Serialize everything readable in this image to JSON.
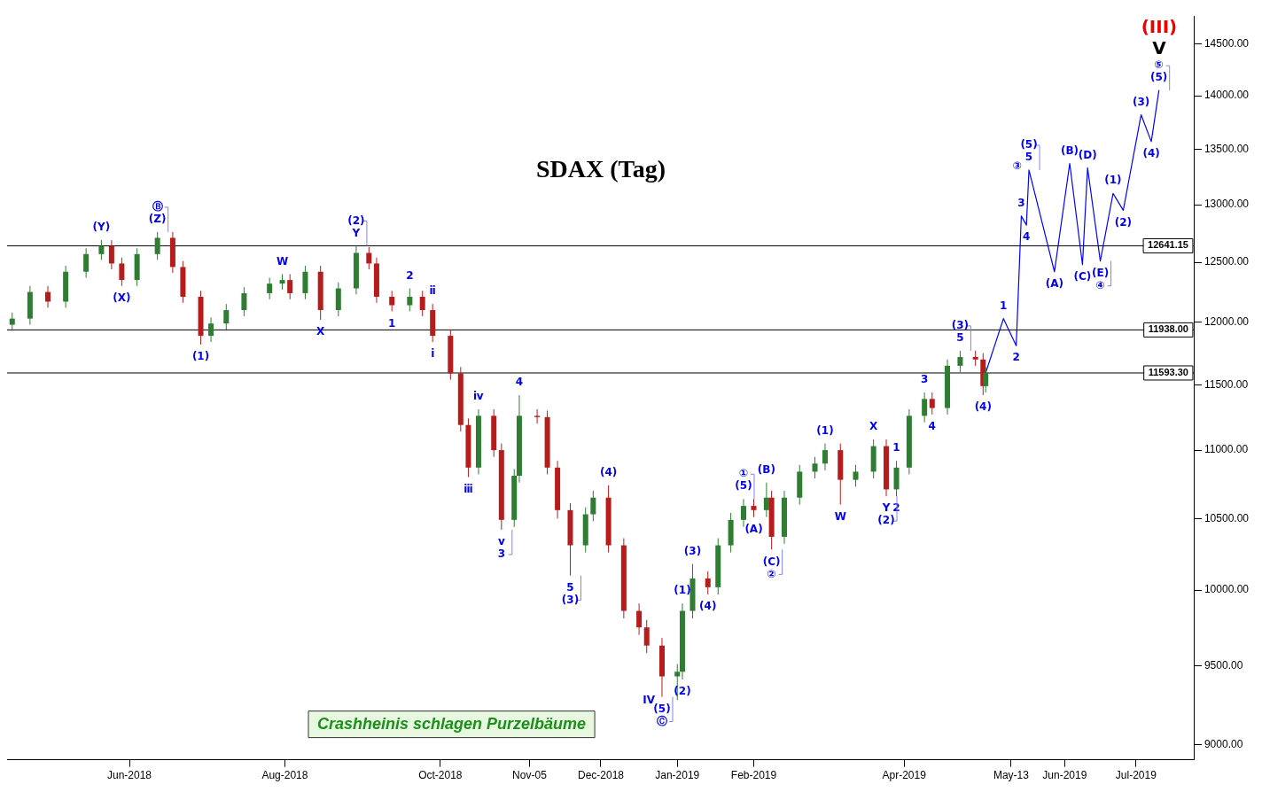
{
  "chart_data": {
    "type": "candlestick",
    "title": "SDAX (Tag)",
    "x": [
      "2018-04-16",
      "2018-04-23",
      "2018-04-30",
      "2018-05-07",
      "2018-05-15",
      "2018-05-21",
      "2018-05-25",
      "2018-05-29",
      "2018-06-04",
      "2018-06-12",
      "2018-06-18",
      "2018-06-22",
      "2018-06-29",
      "2018-07-03",
      "2018-07-09",
      "2018-07-16",
      "2018-07-26",
      "2018-07-31",
      "2018-08-03",
      "2018-08-09",
      "2018-08-15",
      "2018-08-22",
      "2018-08-29",
      "2018-09-03",
      "2018-09-06",
      "2018-09-12",
      "2018-09-19",
      "2018-09-24",
      "2018-09-28",
      "2018-10-05",
      "2018-10-09",
      "2018-10-12",
      "2018-10-16",
      "2018-10-22",
      "2018-10-25",
      "2018-10-30",
      "2018-11-01",
      "2018-11-08",
      "2018-11-12",
      "2018-11-16",
      "2018-11-21",
      "2018-11-27",
      "2018-11-30",
      "2018-12-06",
      "2018-12-12",
      "2018-12-18",
      "2018-12-21",
      "2018-12-27",
      "2019-01-02",
      "2019-01-04",
      "2019-01-08",
      "2019-01-14",
      "2019-01-18",
      "2019-01-23",
      "2019-01-28",
      "2019-02-01",
      "2019-02-06",
      "2019-02-08",
      "2019-02-13",
      "2019-02-19",
      "2019-02-25",
      "2019-03-01",
      "2019-03-07",
      "2019-03-13",
      "2019-03-20",
      "2019-03-25",
      "2019-03-29",
      "2019-04-03",
      "2019-04-09",
      "2019-04-12",
      "2019-04-18",
      "2019-04-23",
      "2019-04-29",
      "2019-05-02",
      "2019-05-03"
    ],
    "ohlc": [
      [
        11980,
        12080,
        11930,
        12030
      ],
      [
        12030,
        12300,
        11980,
        12250
      ],
      [
        12250,
        12300,
        12120,
        12170
      ],
      [
        12170,
        12470,
        12120,
        12420
      ],
      [
        12420,
        12620,
        12370,
        12570
      ],
      [
        12570,
        12690,
        12520,
        12640
      ],
      [
        12640,
        12690,
        12440,
        12490
      ],
      [
        12490,
        12540,
        12300,
        12350
      ],
      [
        12350,
        12620,
        12300,
        12570
      ],
      [
        12570,
        12760,
        12520,
        12710
      ],
      [
        12710,
        12760,
        12410,
        12460
      ],
      [
        12460,
        12510,
        12160,
        12210
      ],
      [
        12210,
        12260,
        11820,
        11890
      ],
      [
        11890,
        12040,
        11840,
        11990
      ],
      [
        11990,
        12150,
        11940,
        12100
      ],
      [
        12100,
        12290,
        12050,
        12240
      ],
      [
        12240,
        12370,
        12190,
        12320
      ],
      [
        12320,
        12400,
        12270,
        12350
      ],
      [
        12350,
        12400,
        12190,
        12240
      ],
      [
        12240,
        12470,
        12190,
        12420
      ],
      [
        12420,
        12470,
        12020,
        12100
      ],
      [
        12100,
        12330,
        12050,
        12280
      ],
      [
        12280,
        12641.15,
        12230,
        12580
      ],
      [
        12580,
        12630,
        12440,
        12490
      ],
      [
        12490,
        12540,
        12160,
        12210
      ],
      [
        12210,
        12260,
        12090,
        12140
      ],
      [
        12140,
        12280,
        12090,
        12210
      ],
      [
        12210,
        12260,
        12050,
        12100
      ],
      [
        12100,
        12150,
        11840,
        11890
      ],
      [
        11890,
        11940,
        11540,
        11590
      ],
      [
        11590,
        11640,
        11140,
        11190
      ],
      [
        11190,
        11240,
        10800,
        10870
      ],
      [
        10870,
        11310,
        10820,
        11260
      ],
      [
        11260,
        11310,
        10950,
        11000
      ],
      [
        11000,
        11050,
        10420,
        10490
      ],
      [
        10490,
        10860,
        10440,
        10810
      ],
      [
        10810,
        11420,
        10760,
        11260
      ],
      [
        11260,
        11310,
        11200,
        11250
      ],
      [
        11250,
        11300,
        10820,
        10870
      ],
      [
        10870,
        10920,
        10500,
        10560
      ],
      [
        10560,
        10610,
        10100,
        10310
      ],
      [
        10310,
        10580,
        10260,
        10530
      ],
      [
        10530,
        10700,
        10480,
        10650
      ],
      [
        10650,
        10740,
        10260,
        10310
      ],
      [
        10310,
        10360,
        9810,
        9860
      ],
      [
        9860,
        9910,
        9700,
        9750
      ],
      [
        9750,
        9800,
        9580,
        9630
      ],
      [
        9630,
        9680,
        9300,
        9430
      ],
      [
        9430,
        9510,
        9280,
        9460
      ],
      [
        9460,
        9910,
        9410,
        9860
      ],
      [
        9860,
        10180,
        9810,
        10080
      ],
      [
        10080,
        10130,
        9970,
        10020
      ],
      [
        10020,
        10360,
        9970,
        10310
      ],
      [
        10310,
        10540,
        10260,
        10490
      ],
      [
        10490,
        10640,
        10440,
        10590
      ],
      [
        10590,
        10640,
        10510,
        10560
      ],
      [
        10560,
        10760,
        10510,
        10650
      ],
      [
        10650,
        10700,
        10280,
        10370
      ],
      [
        10370,
        10700,
        10320,
        10650
      ],
      [
        10650,
        10890,
        10600,
        10840
      ],
      [
        10840,
        10950,
        10790,
        10900
      ],
      [
        10900,
        11050,
        10850,
        11000
      ],
      [
        11000,
        11050,
        10600,
        10780
      ],
      [
        10780,
        10890,
        10730,
        10840
      ],
      [
        10840,
        11080,
        10790,
        11030
      ],
      [
        11030,
        11080,
        10660,
        10710
      ],
      [
        10710,
        10920,
        10660,
        10870
      ],
      [
        10870,
        11310,
        10820,
        11260
      ],
      [
        11260,
        11440,
        11210,
        11390
      ],
      [
        11390,
        11440,
        11270,
        11320
      ],
      [
        11320,
        11700,
        11270,
        11650
      ],
      [
        11650,
        11770,
        11600,
        11720
      ],
      [
        11720,
        11770,
        11650,
        11700
      ],
      [
        11700,
        11750,
        11420,
        11490
      ],
      [
        11490,
        11640,
        11440,
        11593.3
      ]
    ],
    "colors": [
      "#2e7d32",
      "#2e7d32",
      "#b71c1c",
      "#2e7d32",
      "#2e7d32",
      "#2e7d32",
      "#b71c1c",
      "#b71c1c",
      "#2e7d32",
      "#2e7d32",
      "#b71c1c",
      "#b71c1c",
      "#b71c1c",
      "#2e7d32",
      "#2e7d32",
      "#2e7d32",
      "#2e7d32",
      "#2e7d32",
      "#b71c1c",
      "#2e7d32",
      "#b71c1c",
      "#2e7d32",
      "#2e7d32",
      "#b71c1c",
      "#b71c1c",
      "#b71c1c",
      "#2e7d32",
      "#b71c1c",
      "#b71c1c",
      "#b71c1c",
      "#b71c1c",
      "#b71c1c",
      "#2e7d32",
      "#b71c1c",
      "#b71c1c",
      "#2e7d32",
      "#2e7d32",
      "#b71c1c",
      "#b71c1c",
      "#b71c1c",
      "#b71c1c",
      "#2e7d32",
      "#2e7d32",
      "#b71c1c",
      "#b71c1c",
      "#b71c1c",
      "#b71c1c",
      "#b71c1c",
      "#2e7d32",
      "#2e7d32",
      "#2e7d32",
      "#b71c1c",
      "#2e7d32",
      "#2e7d32",
      "#2e7d32",
      "#b71c1c",
      "#2e7d32",
      "#b71c1c",
      "#2e7d32",
      "#2e7d32",
      "#2e7d32",
      "#2e7d32",
      "#b71c1c",
      "#2e7d32",
      "#2e7d32",
      "#b71c1c",
      "#2e7d32",
      "#2e7d32",
      "#2e7d32",
      "#b71c1c",
      "#2e7d32",
      "#2e7d32",
      "#b71c1c",
      "#b71c1c",
      "#2e7d32"
    ],
    "series": [
      {
        "type": "line",
        "color": "#0000ff",
        "x": [
          "2019-05-03",
          "2019-05-10",
          "2019-05-15",
          "2019-05-17",
          "2019-05-19",
          "2019-05-20",
          "2019-05-30",
          "2019-06-05",
          "2019-06-10",
          "2019-06-12",
          "2019-06-17",
          "2019-06-22",
          "2019-06-26",
          "2019-07-03",
          "2019-07-07",
          "2019-07-10"
        ],
        "values": [
          11593.3,
          12030,
          11810,
          12900,
          12820,
          13310,
          12420,
          13370,
          12480,
          13330,
          12510,
          13100,
          12950,
          13820,
          13570,
          14050
        ]
      }
    ],
    "marker": "none",
    "log": "y",
    "xlim": [
      "2018-04-14",
      "2019-07-24"
    ],
    "xticks": [
      {
        "value": "2018-06-01",
        "label": "Jun-2018"
      },
      {
        "value": "2018-08-01",
        "label": "Aug-2018"
      },
      {
        "value": "2018-10-01",
        "label": "Oct-2018"
      },
      {
        "value": "2018-11-05",
        "label": "Nov-05"
      },
      {
        "value": "2018-12-03",
        "label": "Dec-2018"
      },
      {
        "value": "2019-01-02",
        "label": "Jan-2019"
      },
      {
        "value": "2019-02-01",
        "label": "Feb-2019"
      },
      {
        "value": "2019-04-01",
        "label": "Apr-2019"
      },
      {
        "value": "2019-05-13",
        "label": "May-13"
      },
      {
        "value": "2019-06-03",
        "label": "Jun-2019"
      },
      {
        "value": "2019-07-01",
        "label": "Jul-2019"
      }
    ],
    "ylim": [
      8910,
      14780
    ],
    "yticks": [
      {
        "value": 9000,
        "label": "9000.00"
      },
      {
        "value": 9500,
        "label": "9500.00"
      },
      {
        "value": 10000,
        "label": "10000.00"
      },
      {
        "value": 10500,
        "label": "10500.00"
      },
      {
        "value": 11000,
        "label": "11000.00"
      },
      {
        "value": 11500,
        "label": "11500.00"
      },
      {
        "value": 12000,
        "label": "12000.00"
      },
      {
        "value": 12500,
        "label": "12500.00"
      },
      {
        "value": 13000,
        "label": "13000.00"
      },
      {
        "value": 13500,
        "label": "13500.00"
      },
      {
        "value": 14000,
        "label": "14000.00"
      },
      {
        "value": 14500,
        "label": "14500.00"
      }
    ],
    "ref_lines": [
      {
        "axis": "y",
        "value": 12641.15,
        "label": "12641.15",
        "color": "#000000"
      },
      {
        "axis": "y",
        "value": 11938,
        "label": "11938.00",
        "color": "#000000"
      },
      {
        "axis": "y",
        "value": 11593.3,
        "label": "11593.30",
        "color": "#000000"
      }
    ],
    "grid": false,
    "legend": false,
    "annotations": [
      "Crashheinis schlagen Purzelbäume",
      {
        "text": "(Y)",
        "x": "2018-05-21",
        "y": 12690
      },
      {
        "text": "(Z)",
        "x": "2018-06-12",
        "y": 12760
      },
      {
        "text": "Ⓑ",
        "x": "2018-06-12",
        "y": 12760
      },
      {
        "text": "(X)",
        "x": "2018-05-29",
        "y": 12300
      },
      {
        "text": "(1)",
        "x": "2018-06-29",
        "y": 11820
      },
      {
        "text": "W",
        "x": "2018-07-31",
        "y": 12400
      },
      {
        "text": "Y",
        "x": "2018-08-29",
        "y": 12641.15
      },
      {
        "text": "(2)",
        "x": "2018-08-29",
        "y": 12641.15
      },
      {
        "text": "X",
        "x": "2018-08-15",
        "y": 12020
      },
      {
        "text": "1",
        "x": "2018-09-12",
        "y": 12090
      },
      {
        "text": "2",
        "x": "2018-09-19",
        "y": 12280
      },
      {
        "text": "ⅱ",
        "x": "2018-09-28",
        "y": 12150
      },
      {
        "text": "ⅰ",
        "x": "2018-09-28",
        "y": 11840
      },
      {
        "text": "ⅲ",
        "x": "2018-10-12",
        "y": 10800
      },
      {
        "text": "ⅳ",
        "x": "2018-10-16",
        "y": 11310
      },
      {
        "text": "ⅴ",
        "x": "2018-10-25",
        "y": 10420
      },
      {
        "text": "3",
        "x": "2018-10-25",
        "y": 10420
      },
      {
        "text": "4",
        "x": "2018-11-01",
        "y": 11420
      },
      {
        "text": "5",
        "x": "2018-11-21",
        "y": 10100
      },
      {
        "text": "(3)",
        "x": "2018-11-21",
        "y": 10100
      },
      {
        "text": "(4)",
        "x": "2018-12-06",
        "y": 10740
      },
      {
        "text": "(1)",
        "x": "2019-01-04",
        "y": 9910
      },
      {
        "text": "(2)",
        "x": "2019-01-04",
        "y": 9410
      },
      {
        "text": "(5)",
        "x": "2018-12-27",
        "y": 9300
      },
      {
        "text": "Ⓒ",
        "x": "2018-12-27",
        "y": 9300
      },
      {
        "text": "IV",
        "x": "2018-12-27",
        "y": 9300
      },
      {
        "text": "(3)",
        "x": "2019-01-08",
        "y": 10180
      },
      {
        "text": "(4)",
        "x": "2019-01-14",
        "y": 9970
      },
      {
        "text": "(5)",
        "x": "2019-01-28",
        "y": 10640
      },
      {
        "text": "①",
        "x": "2019-01-28",
        "y": 10640
      },
      {
        "text": "(A)",
        "x": "2019-02-01",
        "y": 10510
      },
      {
        "text": "(B)",
        "x": "2019-02-06",
        "y": 10760
      },
      {
        "text": "(C)",
        "x": "2019-02-08",
        "y": 10280
      },
      {
        "text": "②",
        "x": "2019-02-08",
        "y": 10280
      },
      {
        "text": "(1)",
        "x": "2019-03-01",
        "y": 11050
      },
      {
        "text": "W",
        "x": "2019-03-07",
        "y": 10600
      },
      {
        "text": "X",
        "x": "2019-03-20",
        "y": 11080
      },
      {
        "text": "1",
        "x": "2019-03-29",
        "y": 10920
      },
      {
        "text": "2",
        "x": "2019-03-29",
        "y": 10660
      },
      {
        "text": "Y",
        "x": "2019-03-25",
        "y": 10660
      },
      {
        "text": "(2)",
        "x": "2019-03-25",
        "y": 10660
      },
      {
        "text": "3",
        "x": "2019-04-09",
        "y": 11440
      },
      {
        "text": "4",
        "x": "2019-04-12",
        "y": 11270
      },
      {
        "text": "5",
        "x": "2019-04-23",
        "y": 11770
      },
      {
        "text": "(3)",
        "x": "2019-04-23",
        "y": 11770
      },
      {
        "text": "(4)",
        "x": "2019-05-02",
        "y": 11420
      },
      {
        "text": "1",
        "x": "2019-05-10",
        "y": 12030
      },
      {
        "text": "2",
        "x": "2019-05-15",
        "y": 11810
      },
      {
        "text": "3",
        "x": "2019-05-17",
        "y": 12900
      },
      {
        "text": "4",
        "x": "2019-05-19",
        "y": 12820
      },
      {
        "text": "5",
        "x": "2019-05-20",
        "y": 13310
      },
      {
        "text": "(5)",
        "x": "2019-05-20",
        "y": 13310
      },
      {
        "text": "③",
        "x": "2019-05-20",
        "y": 13310
      },
      {
        "text": "(A)",
        "x": "2019-05-30",
        "y": 12420
      },
      {
        "text": "(B)",
        "x": "2019-06-05",
        "y": 13370
      },
      {
        "text": "(C)",
        "x": "2019-06-10",
        "y": 12480
      },
      {
        "text": "(D)",
        "x": "2019-06-12",
        "y": 13330
      },
      {
        "text": "(E)",
        "x": "2019-06-17",
        "y": 12510
      },
      {
        "text": "④",
        "x": "2019-06-17",
        "y": 12510
      },
      {
        "text": "(1)",
        "x": "2019-06-22",
        "y": 13100
      },
      {
        "text": "(2)",
        "x": "2019-06-26",
        "y": 12950
      },
      {
        "text": "(3)",
        "x": "2019-07-03",
        "y": 13820
      },
      {
        "text": "(4)",
        "x": "2019-07-07",
        "y": 13570
      },
      {
        "text": "(5)",
        "x": "2019-07-10",
        "y": 14050
      },
      {
        "text": "⑤",
        "x": "2019-07-10",
        "y": 14050
      },
      "(III)",
      "V"
    ]
  }
}
